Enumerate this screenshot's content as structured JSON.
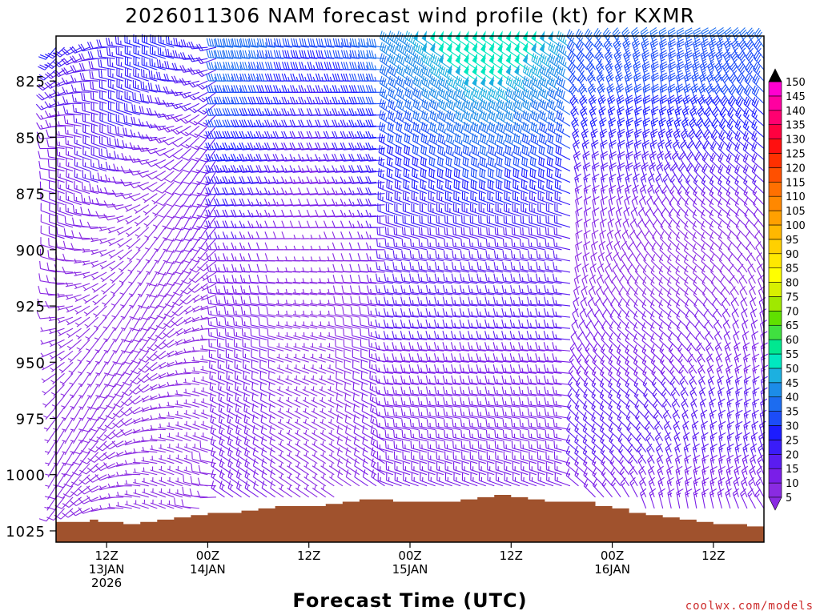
{
  "title": "2026011306 NAM forecast wind profile (kt) for KXMR",
  "xlabel": "Forecast Time (UTC)",
  "credit": "coolwx.com/models",
  "chart_data": {
    "type": "wind-barb time-height",
    "title": "2026011306 NAM forecast wind profile (kt) for KXMR",
    "xlabel": "Forecast Time (UTC)",
    "ylabel": "",
    "y_axis": {
      "units": "hPa",
      "reversed": true,
      "range": [
        1030,
        805
      ],
      "ticks": [
        825,
        850,
        875,
        900,
        925,
        950,
        975,
        1000,
        1025
      ],
      "barb_levels": [
        810,
        815,
        820,
        825,
        830,
        835,
        840,
        845,
        850,
        855,
        860,
        865,
        870,
        875,
        880,
        885,
        890,
        895,
        900,
        905,
        910,
        915,
        920,
        925,
        930,
        935,
        940,
        945,
        950,
        955,
        960,
        965,
        970,
        975,
        980,
        985,
        990,
        995,
        1000,
        1005,
        1010,
        1015
      ]
    },
    "x_axis": {
      "units": "forecast hour from 2026011306",
      "range": [
        0,
        84
      ],
      "step": 1,
      "ticks": [
        {
          "hour": 6,
          "labels": [
            "12Z",
            "13JAN",
            "2026"
          ]
        },
        {
          "hour": 18,
          "labels": [
            "00Z",
            "14JAN"
          ]
        },
        {
          "hour": 30,
          "labels": [
            "12Z"
          ]
        },
        {
          "hour": 42,
          "labels": [
            "00Z",
            "15JAN"
          ]
        },
        {
          "hour": 54,
          "labels": [
            "12Z"
          ]
        },
        {
          "hour": 66,
          "labels": [
            "00Z",
            "16JAN"
          ]
        },
        {
          "hour": 78,
          "labels": [
            "12Z"
          ]
        }
      ]
    },
    "surface_pressure": {
      "hours": [
        0,
        3,
        4,
        5,
        8,
        10,
        12,
        14,
        16,
        18,
        20,
        22,
        24,
        26,
        28,
        30,
        32,
        34,
        36,
        38,
        40,
        42,
        44,
        46,
        48,
        50,
        52,
        54,
        56,
        58,
        60,
        62,
        64,
        66,
        68,
        70,
        72,
        74,
        76,
        78,
        80,
        82,
        84
      ],
      "pressure": [
        1021,
        1021,
        1020,
        1021,
        1022,
        1021,
        1020,
        1019,
        1018,
        1017,
        1017,
        1016,
        1015,
        1014,
        1014,
        1014,
        1013,
        1012,
        1011,
        1011,
        1012,
        1012,
        1012,
        1012,
        1011,
        1010,
        1009,
        1010,
        1011,
        1012,
        1012,
        1012,
        1014,
        1015,
        1017,
        1018,
        1019,
        1020,
        1021,
        1022,
        1022,
        1023,
        1021
      ]
    },
    "wind_description": "Time-height section of NAM forecast wind barbs (kt) at KXMR; barbs colored by speed. Strongest winds (40-50 kt, westerly/northwesterly) near 810-860 hPa between about 15JAN 00Z and 16JAN 00Z; light (5-15 kt) variable winds below 900 hPa early in the period.",
    "color_scale": {
      "units": "kt",
      "labels": [
        5,
        10,
        15,
        20,
        25,
        30,
        35,
        40,
        45,
        50,
        55,
        60,
        65,
        70,
        75,
        80,
        85,
        90,
        95,
        100,
        105,
        110,
        115,
        120,
        125,
        130,
        135,
        140,
        145,
        150
      ],
      "colors": [
        "#8a2be2",
        "#7a1ee8",
        "#5a1cf0",
        "#3a1cf8",
        "#1c1cff",
        "#1c4cf8",
        "#1c6cf0",
        "#1c8ce8",
        "#1cb0e0",
        "#00e8c0",
        "#00e890",
        "#40e040",
        "#60e000",
        "#a0e800",
        "#d8f000",
        "#ffff00",
        "#ffe800",
        "#ffd000",
        "#ffb800",
        "#ffa000",
        "#ff8800",
        "#ff7000",
        "#ff5000",
        "#ff3000",
        "#ff1010",
        "#ff0040",
        "#ff0070",
        "#ff00a0",
        "#ff00d0",
        "#ff00ff"
      ]
    }
  }
}
